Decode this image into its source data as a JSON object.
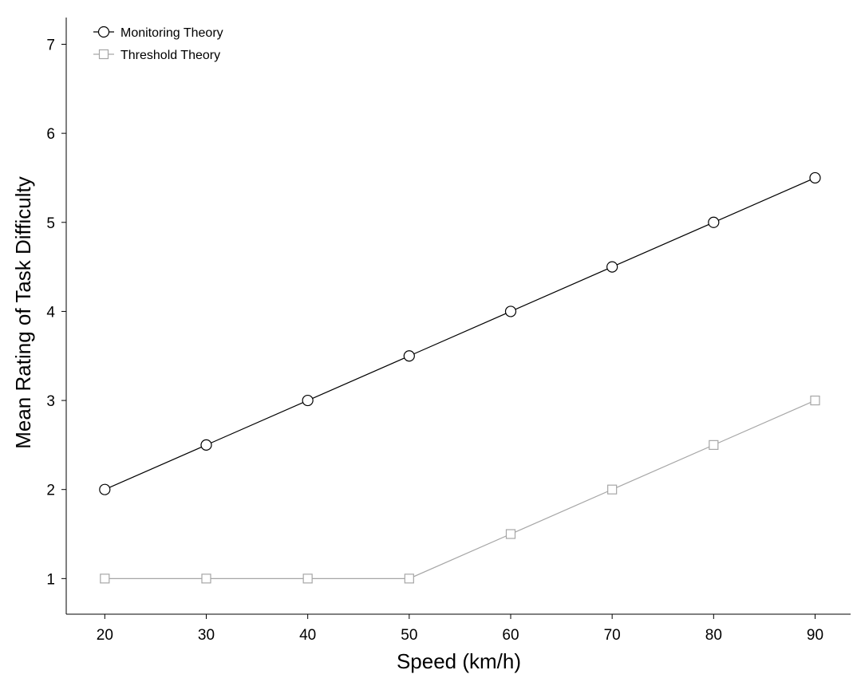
{
  "chart_data": {
    "type": "line",
    "title": "",
    "xlabel": "Speed (km/h)",
    "ylabel": "Mean Rating of Task Difficulty",
    "x": [
      20,
      30,
      40,
      50,
      60,
      70,
      80,
      90
    ],
    "xlim": [
      16.2,
      93.5
    ],
    "ylim": [
      0.6,
      7.3
    ],
    "xticks": [
      20,
      30,
      40,
      50,
      60,
      70,
      80,
      90
    ],
    "yticks": [
      1,
      2,
      3,
      4,
      5,
      6,
      7
    ],
    "grid": false,
    "legend_position": "top-left",
    "series": [
      {
        "name": "Monitoring Theory",
        "values": [
          2.0,
          2.5,
          3.0,
          3.5,
          4.0,
          4.5,
          5.0,
          5.5
        ],
        "color": "#000000",
        "marker": "circle"
      },
      {
        "name": "Threshold Theory",
        "values": [
          1.0,
          1.0,
          1.0,
          1.0,
          1.5,
          2.0,
          2.5,
          3.0
        ],
        "color": "#a6a6a6",
        "marker": "square"
      }
    ]
  }
}
